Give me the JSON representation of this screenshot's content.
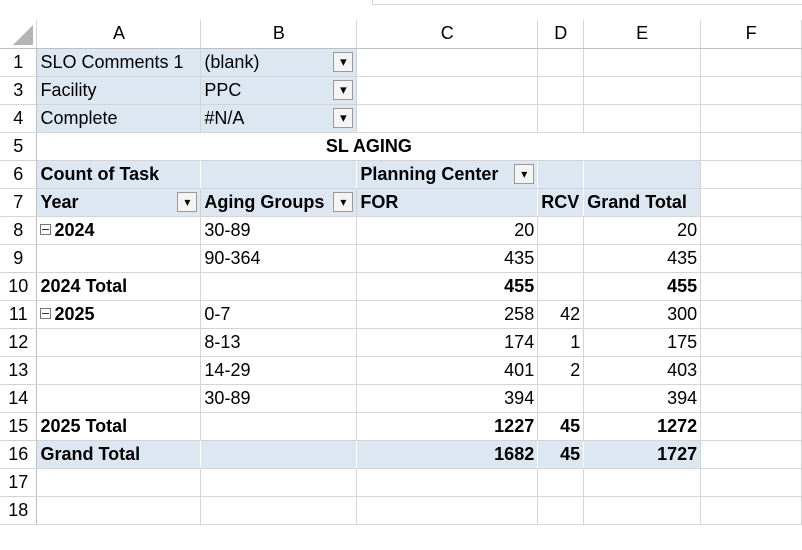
{
  "columns": [
    "A",
    "B",
    "C",
    "D",
    "E",
    "F"
  ],
  "rows": [
    "1",
    "3",
    "4",
    "5",
    "6",
    "7",
    "8",
    "9",
    "10",
    "11",
    "12",
    "13",
    "14",
    "15",
    "16",
    "17",
    "18"
  ],
  "filters": [
    {
      "label": "SLO Comments 1",
      "value": "(blank)"
    },
    {
      "label": "Facility",
      "value": "PPC"
    },
    {
      "label": "Complete",
      "value": "#N/A"
    }
  ],
  "pivot": {
    "title": "SL AGING",
    "value_field": "Count of Task",
    "column_field": "Planning Center",
    "row_field_1": "Year",
    "row_field_2": "Aging Groups",
    "col_headers": [
      "FOR",
      "RCV",
      "Grand Total"
    ],
    "years": [
      {
        "year": "2024",
        "rows": [
          {
            "group": "30-89",
            "for": "20",
            "rcv": "",
            "total": "20"
          },
          {
            "group": "90-364",
            "for": "435",
            "rcv": "",
            "total": "435"
          }
        ],
        "total_label": "2024 Total",
        "total": {
          "for": "455",
          "rcv": "",
          "total": "455"
        }
      },
      {
        "year": "2025",
        "rows": [
          {
            "group": "0-7",
            "for": "258",
            "rcv": "42",
            "total": "300"
          },
          {
            "group": "8-13",
            "for": "174",
            "rcv": "1",
            "total": "175"
          },
          {
            "group": "14-29",
            "for": "401",
            "rcv": "2",
            "total": "403"
          },
          {
            "group": "30-89",
            "for": "394",
            "rcv": "",
            "total": "394"
          }
        ],
        "total_label": "2025 Total",
        "total": {
          "for": "1227",
          "rcv": "45",
          "total": "1272"
        }
      }
    ],
    "grand_total_label": "Grand Total",
    "grand_total": {
      "for": "1682",
      "rcv": "45",
      "total": "1727"
    }
  },
  "icons": {
    "filter_applied": "funnel-dropdown-icon",
    "dropdown": "chevron-down-icon",
    "collapse": "minus-box-icon"
  },
  "colors": {
    "pivot_header_fill": "#dde7f2",
    "grid_line": "#d4d4d4"
  }
}
